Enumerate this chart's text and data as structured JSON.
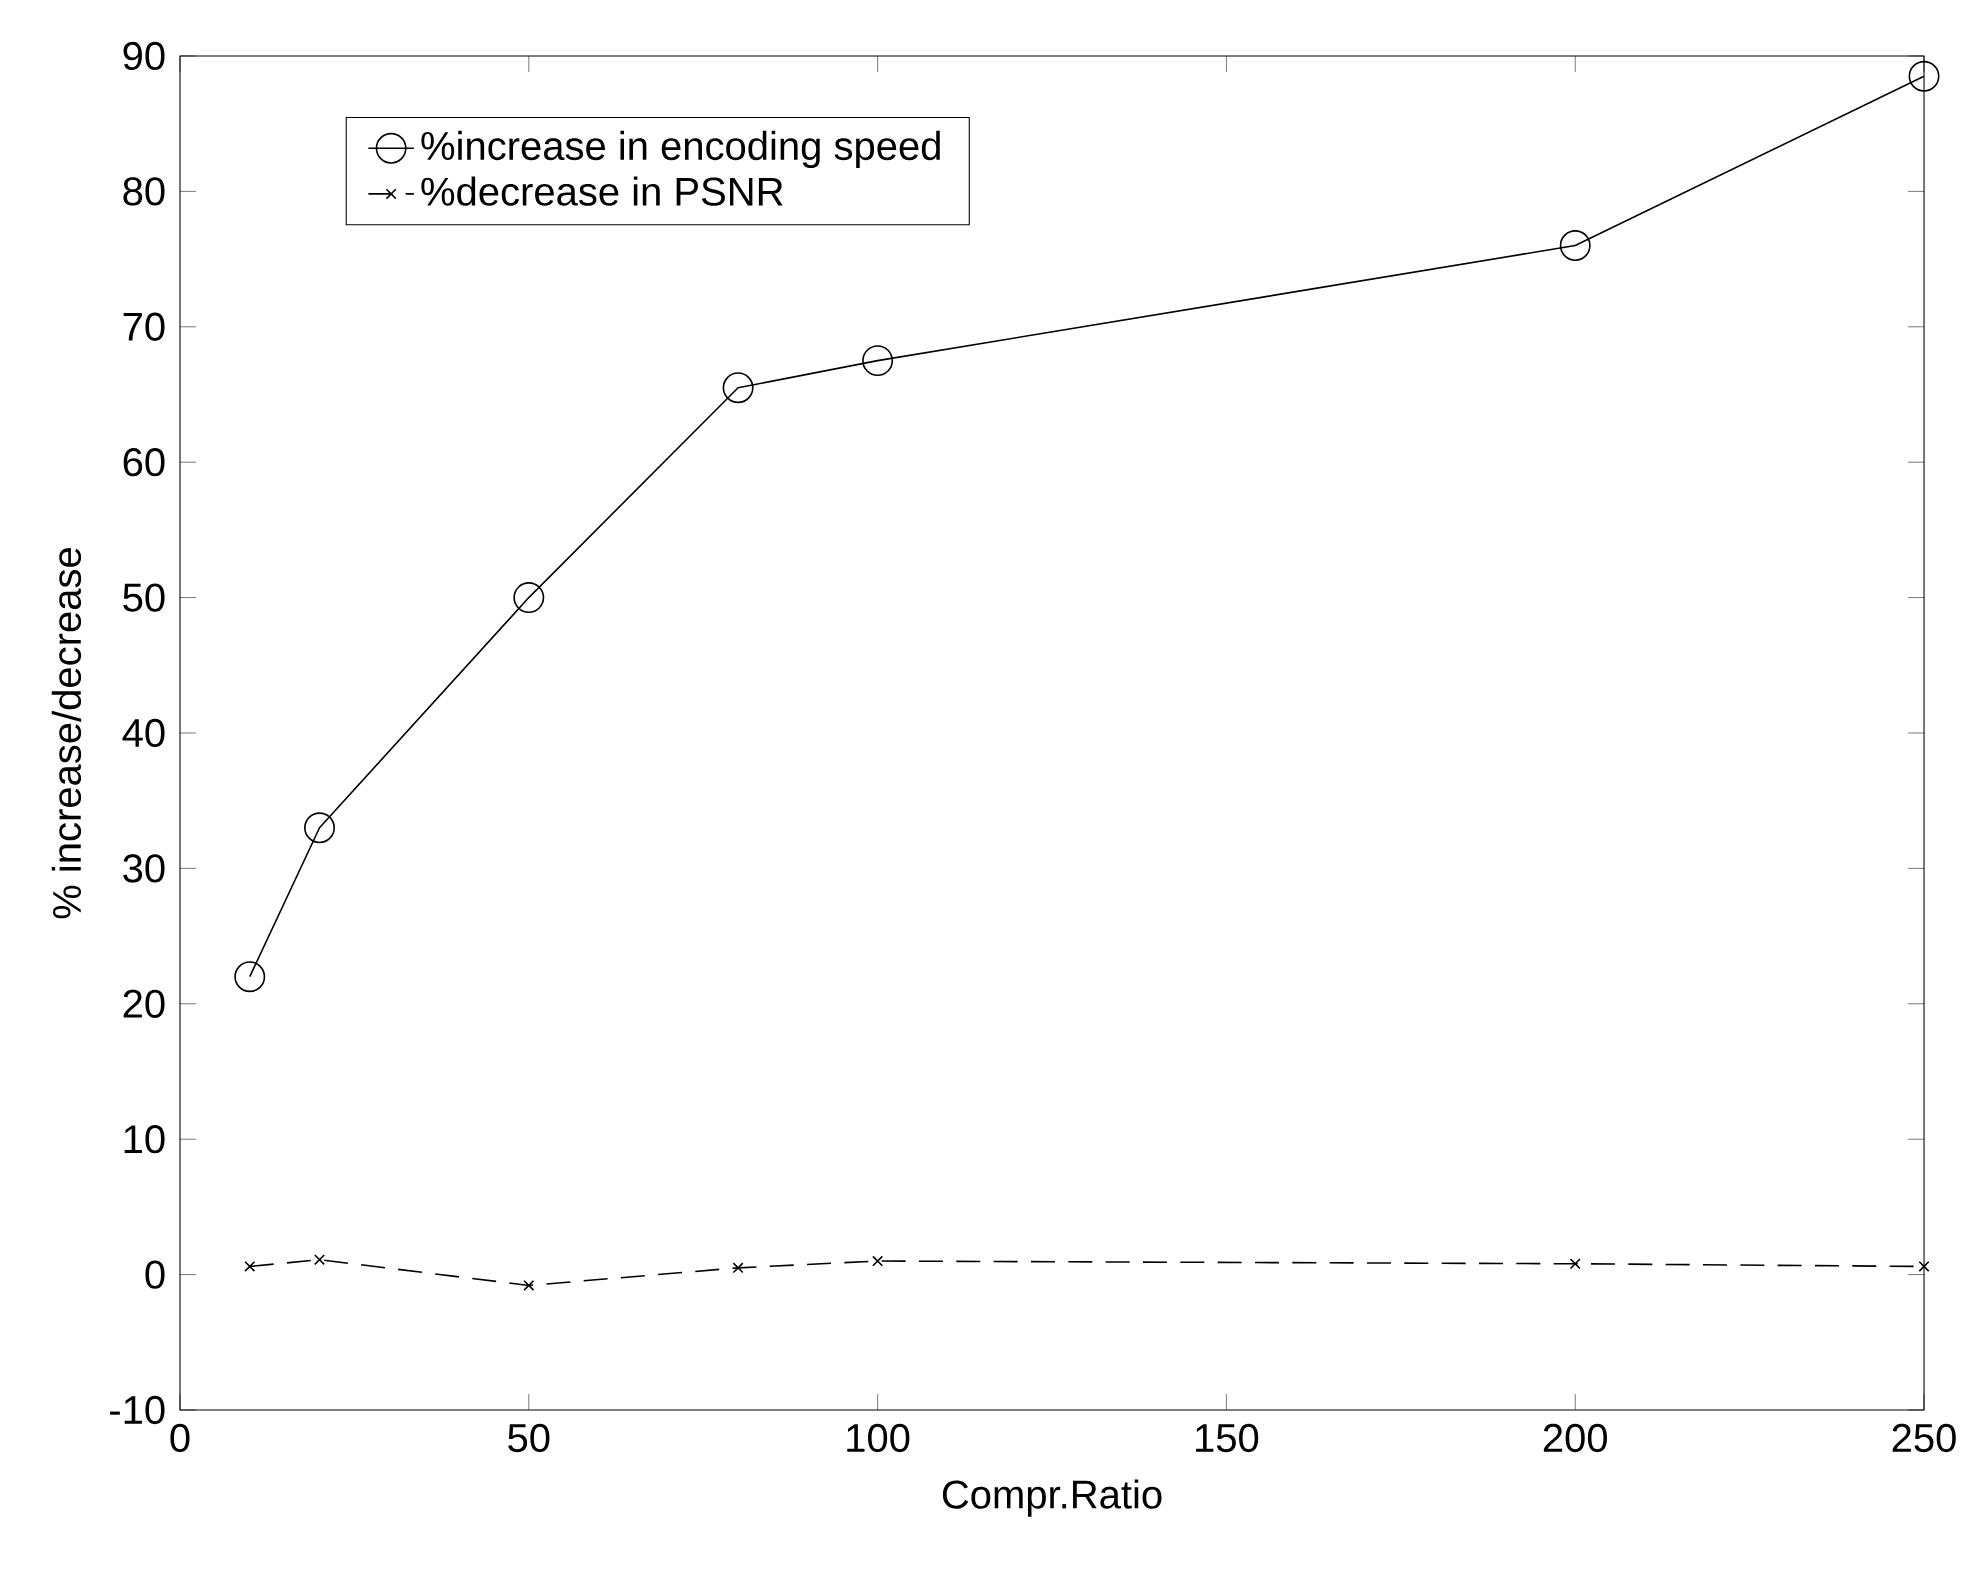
{
  "chart_data": {
    "type": "line",
    "xlabel": "Compr.Ratio",
    "ylabel": "% increase/decrease",
    "x": [
      10,
      20,
      50,
      80,
      100,
      200,
      250
    ],
    "series": [
      {
        "name": "%increase in encoding speed",
        "color": "#000000",
        "marker": "circle",
        "line_style": "solid",
        "values": [
          22,
          33,
          50,
          65.5,
          67.5,
          76,
          88.5
        ]
      },
      {
        "name": "%decrease in PSNR",
        "color": "#000000",
        "marker": "cross",
        "line_style": "dashed",
        "values": [
          0.6,
          1.1,
          -0.8,
          0.5,
          1.0,
          0.8,
          0.6
        ]
      }
    ],
    "xlim": [
      0,
      250
    ],
    "xticks": [
      0,
      50,
      100,
      150,
      200,
      250
    ],
    "ylim": [
      -10,
      90
    ],
    "yticks": [
      -10,
      0,
      10,
      20,
      30,
      40,
      50,
      60,
      70,
      80,
      90
    ],
    "grid": false,
    "legend": "top left"
  }
}
